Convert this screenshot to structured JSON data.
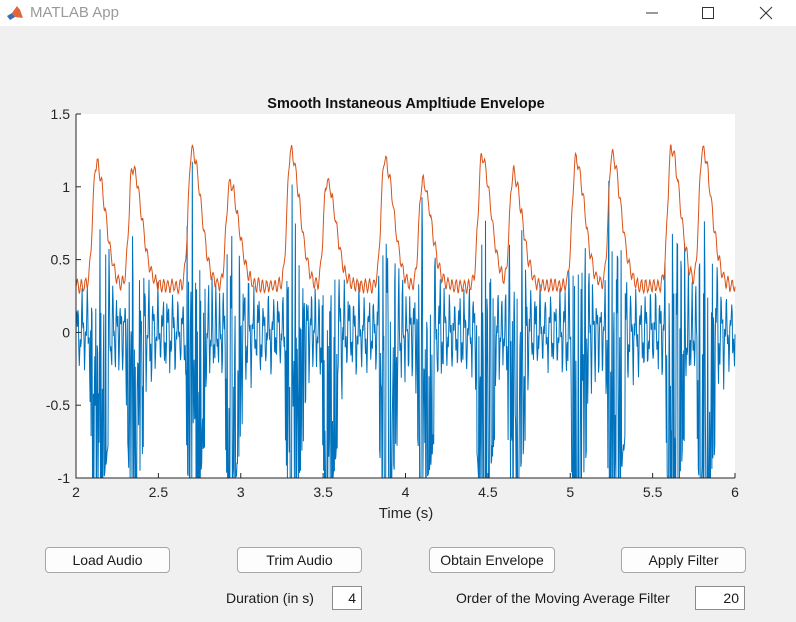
{
  "window": {
    "title": "MATLAB App",
    "icon": "matlab-logo-icon"
  },
  "chart_data": {
    "type": "line",
    "title": "Smooth Instaneous Ampltiude Envelope",
    "xlabel": "Time (s)",
    "ylabel": "",
    "xlim": [
      2,
      6
    ],
    "ylim": [
      -1,
      1.5
    ],
    "xticks": [
      "2",
      "2.5",
      "3",
      "3.5",
      "4",
      "4.5",
      "5",
      "5.5",
      "6"
    ],
    "yticks": [
      "-1",
      "-0.5",
      "0",
      "0.5",
      "1",
      "1.5"
    ],
    "grid": false,
    "colors": {
      "signal": "#0072bd",
      "envelope": "#d95319"
    },
    "beats": [
      {
        "t": 2.12,
        "a": 1.13
      },
      {
        "t": 2.34,
        "a": 1.1
      },
      {
        "t": 2.7,
        "a": 1.22
      },
      {
        "t": 2.93,
        "a": 0.99
      },
      {
        "t": 3.3,
        "a": 1.21
      },
      {
        "t": 3.52,
        "a": 1.0
      },
      {
        "t": 3.87,
        "a": 1.16
      },
      {
        "t": 4.1,
        "a": 1.0
      },
      {
        "t": 4.46,
        "a": 1.17
      },
      {
        "t": 4.65,
        "a": 1.06
      },
      {
        "t": 5.03,
        "a": 1.15
      },
      {
        "t": 5.25,
        "a": 1.18
      },
      {
        "t": 5.61,
        "a": 1.22
      },
      {
        "t": 5.8,
        "a": 1.22
      }
    ],
    "series": [
      {
        "key": "signal",
        "description": "audio waveform"
      },
      {
        "key": "envelope",
        "description": "smoothed amplitude envelope"
      }
    ]
  },
  "controls": {
    "load": "Load Audio",
    "trim": "Trim Audio",
    "envelope": "Obtain Envelope",
    "filter": "Apply Filter",
    "duration_label": "Duration (in s)",
    "duration_value": "4",
    "order_label": "Order of the Moving Average Filter",
    "order_value": "20"
  }
}
